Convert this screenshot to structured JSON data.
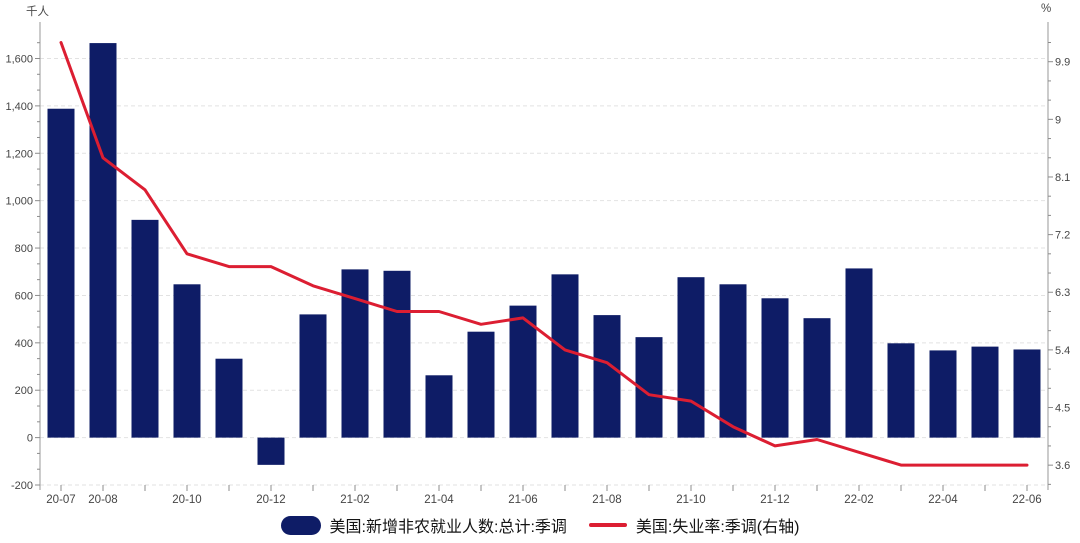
{
  "chart_data": {
    "type": "bar+line",
    "title": "",
    "categories": [
      "20-07",
      "20-08",
      "20-09",
      "20-10",
      "20-11",
      "20-12",
      "21-01",
      "21-02",
      "21-03",
      "21-04",
      "21-05",
      "21-06",
      "21-07",
      "21-08",
      "21-09",
      "21-10",
      "21-11",
      "21-12",
      "22-01",
      "22-02",
      "22-03",
      "22-04",
      "22-05",
      "22-06"
    ],
    "x_labeled_categories": [
      "20-07",
      "20-08",
      "20-10",
      "20-12",
      "21-02",
      "21-04",
      "21-06",
      "21-08",
      "21-10",
      "21-12",
      "22-02",
      "22-04",
      "22-06"
    ],
    "x_labeled_indices": [
      0,
      1,
      3,
      5,
      7,
      9,
      11,
      13,
      15,
      17,
      19,
      21,
      23
    ],
    "series": [
      {
        "name": "美国:新增非农就业人数:总计:季调",
        "type": "bar",
        "axis": "left",
        "color": "#0e1c66",
        "values": [
          1388,
          1665,
          919,
          647,
          333,
          -115,
          520,
          710,
          704,
          263,
          447,
          557,
          689,
          517,
          424,
          677,
          647,
          588,
          504,
          714,
          398,
          368,
          384,
          372
        ]
      },
      {
        "name": "美国:失业率:季调(右轴)",
        "type": "line",
        "axis": "right",
        "color": "#dc1e32",
        "values": [
          10.2,
          8.4,
          7.9,
          6.9,
          6.7,
          6.7,
          6.4,
          6.2,
          6.0,
          6.0,
          5.8,
          5.9,
          5.4,
          5.2,
          4.7,
          4.6,
          4.2,
          3.9,
          4.0,
          3.8,
          3.6,
          3.6,
          3.6,
          3.6
        ]
      }
    ],
    "left_axis": {
      "unit": "千人",
      "tick_values": [
        1600,
        1400,
        1200,
        1000,
        800,
        600,
        400,
        200,
        0,
        -200
      ],
      "tick_labels": [
        "1,600",
        "1,400",
        "1,200",
        "1,000",
        "800",
        "600",
        "400",
        "200",
        "0",
        "-200"
      ],
      "range": [
        -200,
        1754
      ]
    },
    "right_axis": {
      "unit": "%",
      "tick_values": [
        9.9,
        9,
        8.1,
        7.2,
        6.3,
        5.4,
        4.5,
        3.6
      ],
      "tick_labels": [
        "9.9",
        "9",
        "8.1",
        "7.2",
        "6.3",
        "5.4",
        "4.5",
        "3.6"
      ],
      "range": [
        3.29,
        10.52
      ]
    },
    "grid": "horizontal-dashed",
    "legend_position": "bottom-center"
  },
  "style": {
    "grid_color": "#e2e2e2",
    "axis_color": "#a9a9a9",
    "tick_color": "#8c8c8c",
    "tick_text_color": "#454545",
    "background": "#ffffff"
  }
}
